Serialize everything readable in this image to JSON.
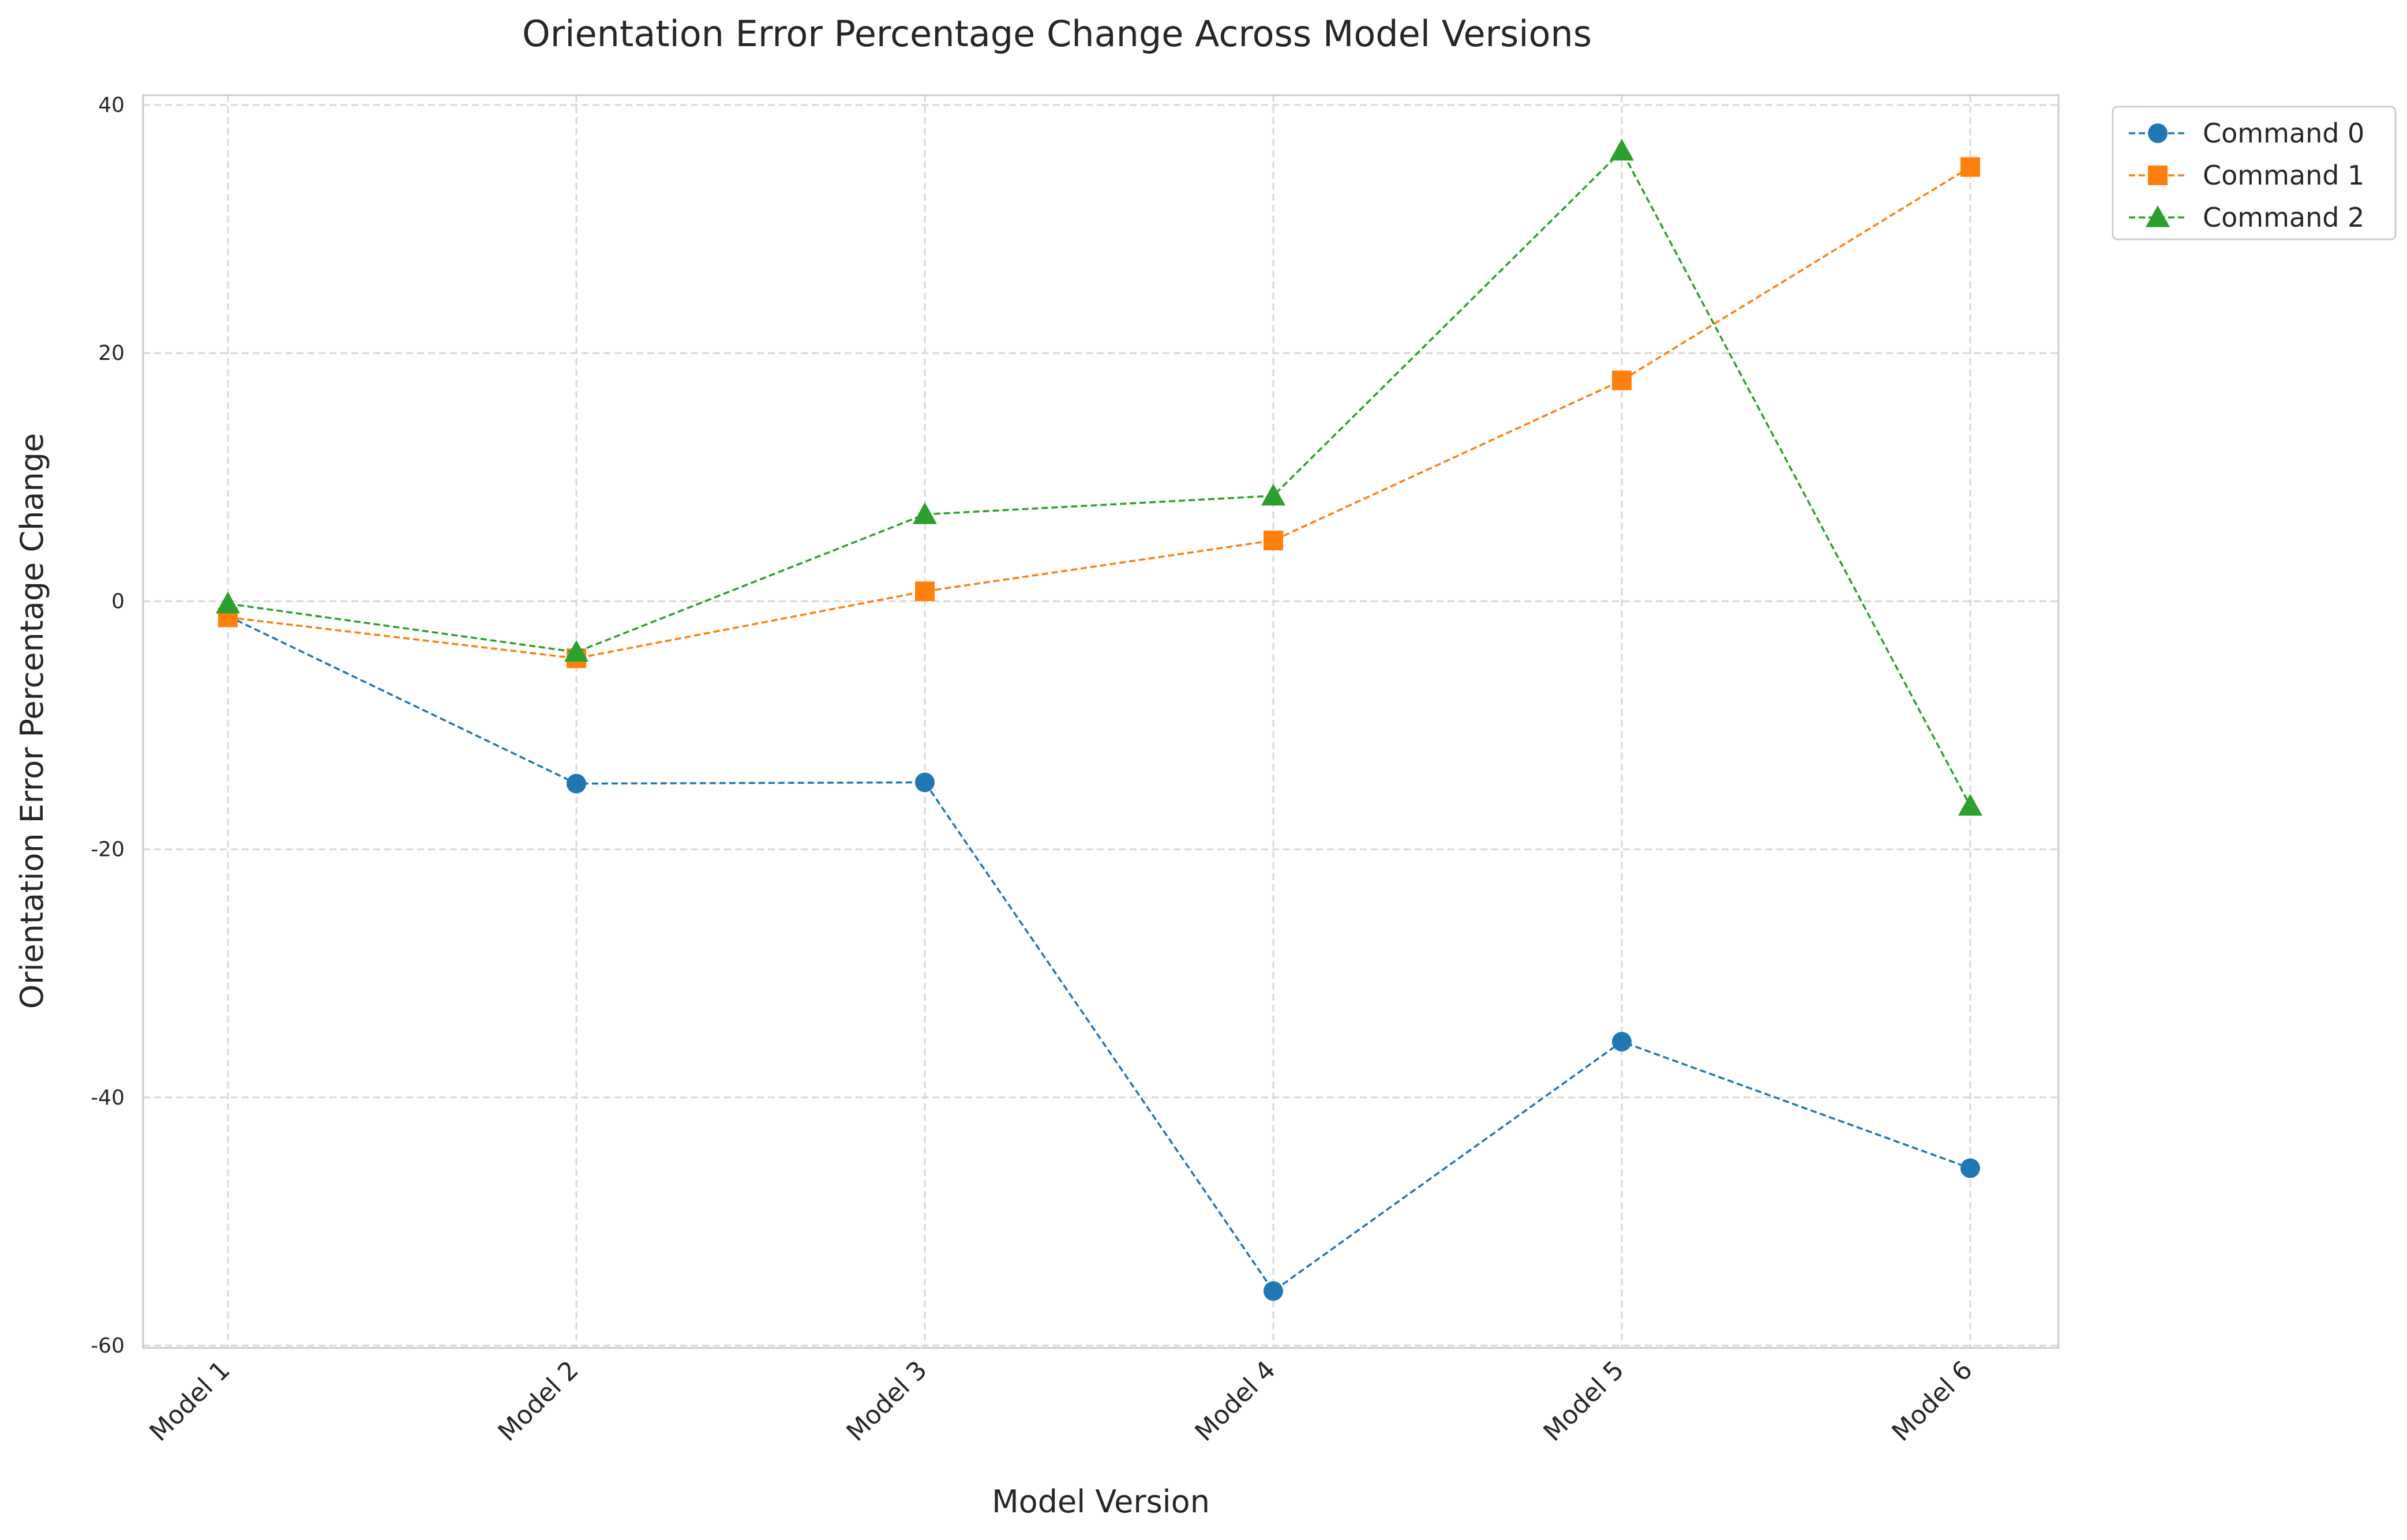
{
  "chart_data": {
    "type": "line",
    "title": "Orientation Error Percentage Change Across Model Versions",
    "xlabel": "Model Version",
    "ylabel": "Orientation Error Percentage Change",
    "categories": [
      "Model 1",
      "Model 2",
      "Model 3",
      "Model 4",
      "Model 5",
      "Model 6"
    ],
    "ylim": [
      -60,
      40
    ],
    "yticks": [
      -60,
      -40,
      -20,
      0,
      20,
      40
    ],
    "grid": true,
    "legend_position": "top-right-outside",
    "series": [
      {
        "name": "Command 0",
        "color": "#1f77b4",
        "marker": "circle",
        "values": [
          -1.2,
          -14.7,
          -14.6,
          -55.6,
          -35.5,
          -45.7
        ]
      },
      {
        "name": "Command 1",
        "color": "#ff7f0e",
        "marker": "square",
        "values": [
          -1.3,
          -4.6,
          0.8,
          4.9,
          17.8,
          35.0
        ]
      },
      {
        "name": "Command 2",
        "color": "#2ca02c",
        "marker": "triangle",
        "values": [
          -0.2,
          -4.1,
          7.0,
          8.5,
          36.3,
          -16.5
        ]
      }
    ]
  }
}
